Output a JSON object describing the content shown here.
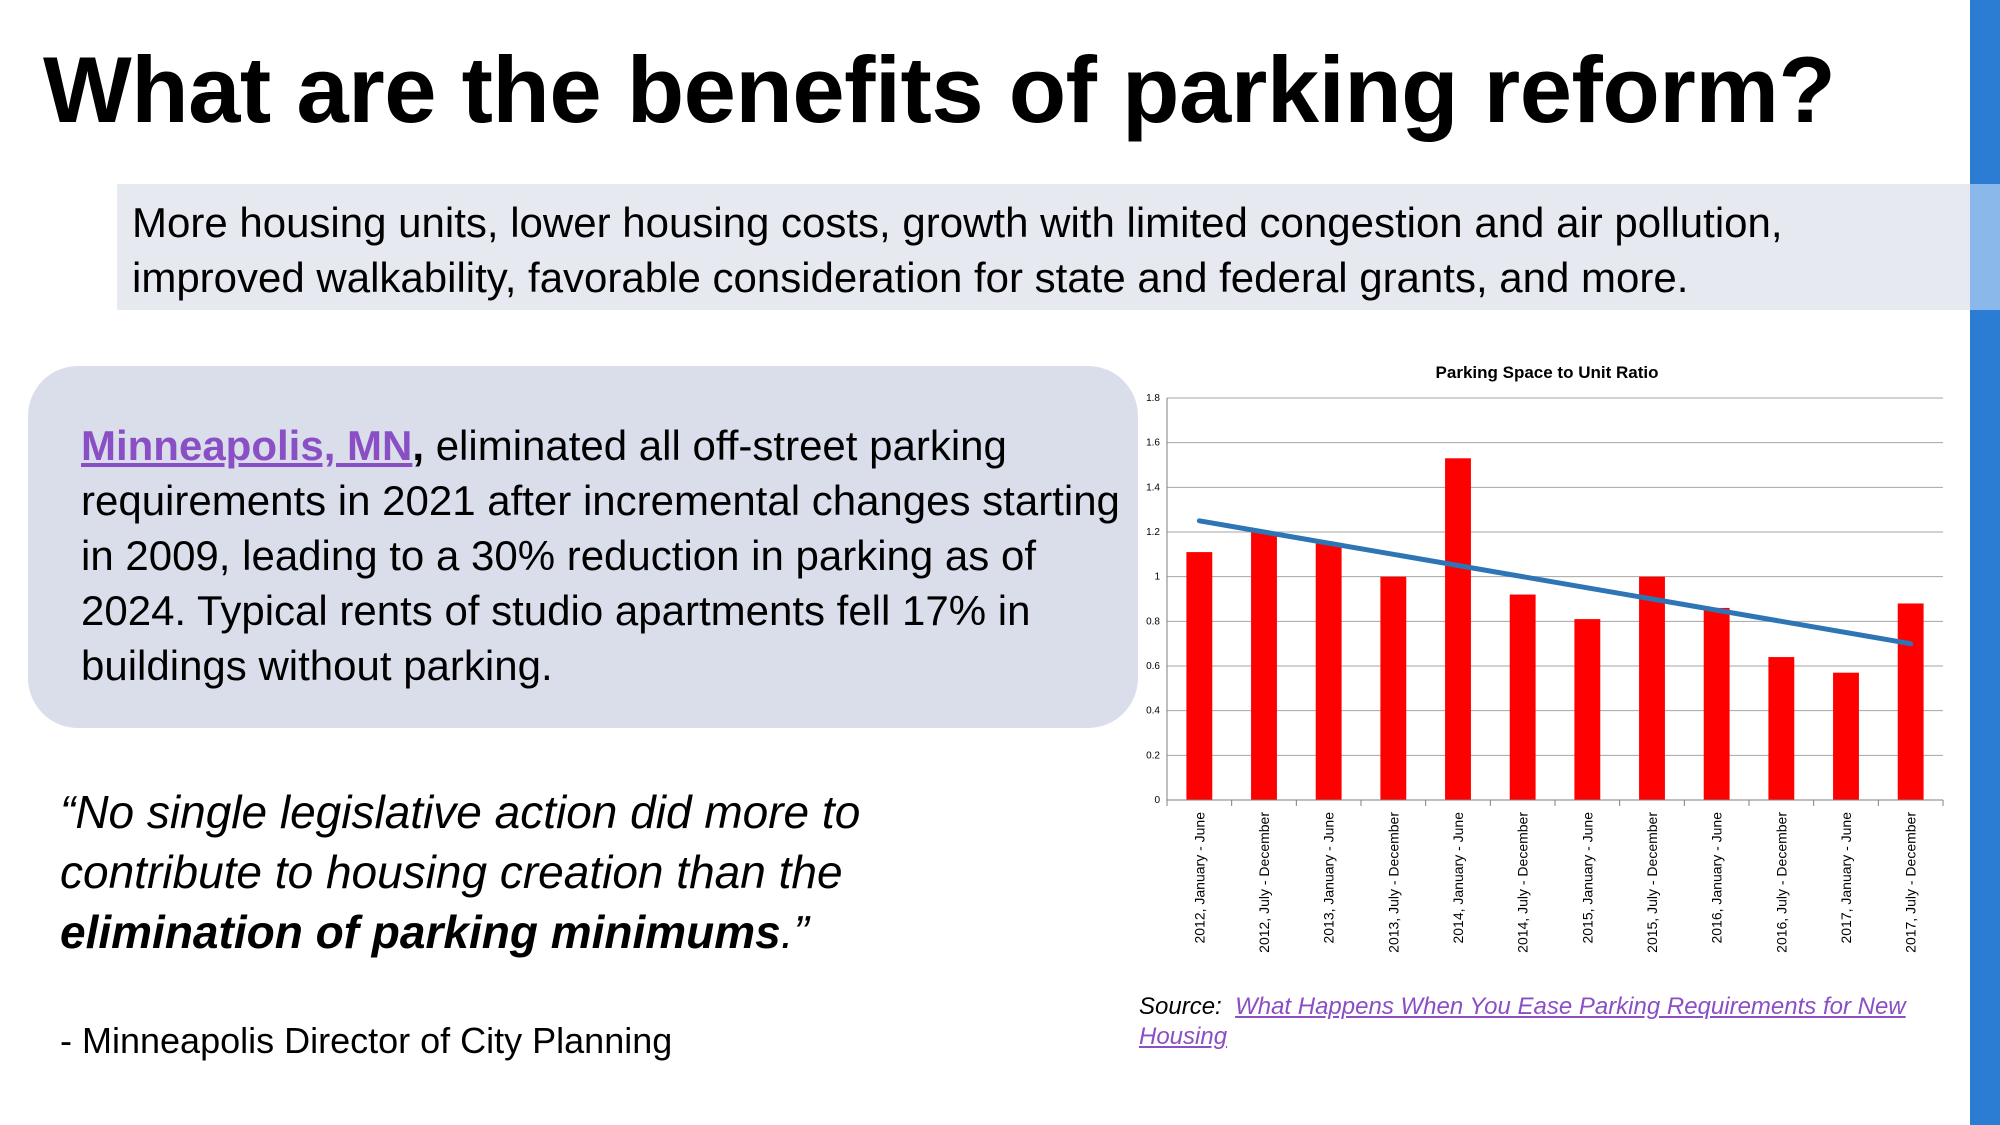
{
  "title": "What are the benefits of parking reform?",
  "summary": {
    "line1": "More housing units, lower housing costs, growth with limited congestion and air pollution,",
    "line2": "improved walkability, favorable consideration for state and federal grants, and more."
  },
  "case_study": {
    "link_text": "Minneapolis, MN",
    "comma": ",",
    "body": " eliminated all off-street parking requirements in 2021 after incremental changes starting in 2009, leading to a 30% reduction in parking as of 2024. Typical rents of studio apartments fell 17% in buildings without parking."
  },
  "quote": {
    "open": "“No single legislative action did more to contribute to housing creation than the ",
    "emphasis": "elimination of parking minimums",
    "close": ".”"
  },
  "attribution": "- Minneapolis Director of City Planning",
  "source": {
    "label": "Source:",
    "link_text": "What Happens When You Ease Parking Requirements for New Housing"
  },
  "colors": {
    "bar": "#ff0000",
    "trend": "#2e75b6",
    "accent_bar": "#2b7cd3",
    "link": "#8a4fc4"
  },
  "chart_data": {
    "type": "bar",
    "title": "Parking Space to Unit Ratio",
    "categories": [
      "2012, January - June",
      "2012, July - December",
      "2013, January - June",
      "2013, July - December",
      "2014, January - June",
      "2014, July - December",
      "2015, January - June",
      "2015, July - December",
      "2016, January - June",
      "2016, July - December",
      "2017, January - June",
      "2017, July - December"
    ],
    "values": [
      1.11,
      1.2,
      1.15,
      1.0,
      1.53,
      0.92,
      0.81,
      1.0,
      0.86,
      0.64,
      0.57,
      0.88
    ],
    "trendline": {
      "start": 1.25,
      "end": 0.7
    },
    "ylim": [
      0,
      1.8
    ],
    "yticks": [
      0,
      0.2,
      0.4,
      0.6,
      0.8,
      1,
      1.2,
      1.4,
      1.6,
      1.8
    ],
    "xlabel": "",
    "ylabel": "",
    "grid": true,
    "legend": "none"
  }
}
